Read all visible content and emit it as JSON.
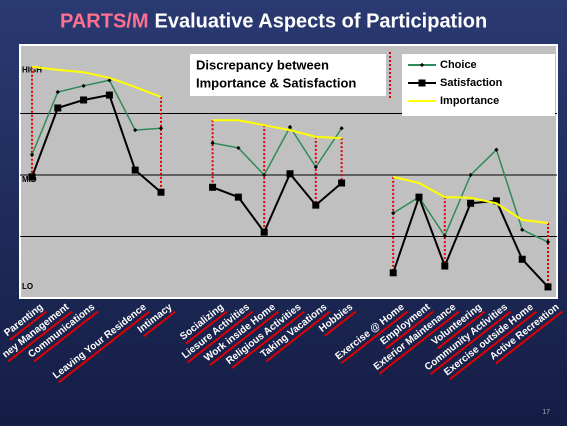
{
  "chart_data": {
    "type": "line",
    "title_highlight": "PARTS/M",
    "title": "Evaluative Aspects of Participation",
    "annotation": [
      "Discrepancy between",
      "Importance & Satisfaction"
    ],
    "page_number": "17",
    "categories": [
      "Parenting",
      "ney Management",
      "Communications",
      null,
      "Leaving Your Residence",
      "Intimacy",
      null,
      "Socializing",
      "Liesure Activities",
      "Work inside Home",
      "Religious Activities",
      "Taking Vacations",
      "Hobbies",
      null,
      "Exercise @ Home",
      "Employment",
      "Exterior Maintenance",
      "Volunteering",
      "Community Activities",
      "Exercise outside Home",
      "Active Recreation"
    ],
    "series": [
      {
        "name": "Choice",
        "color": "#2e8b57",
        "values": [
          2.33,
          3.35,
          3.45,
          3.54,
          2.73,
          2.76,
          null,
          2.52,
          2.44,
          2.0,
          2.78,
          2.13,
          2.76,
          null,
          1.38,
          1.64,
          1.01,
          2.0,
          2.41,
          1.11,
          0.91
        ]
      },
      {
        "name": "Satisfaction",
        "color": "#000000",
        "values": [
          1.97,
          3.09,
          3.22,
          3.3,
          2.08,
          1.72,
          null,
          1.8,
          1.64,
          1.07,
          2.02,
          1.51,
          1.87,
          null,
          0.41,
          1.64,
          0.52,
          1.54,
          1.58,
          0.63,
          0.18
        ]
      },
      {
        "name": "Importance",
        "color": "#ffff00",
        "values": [
          3.76,
          3.71,
          3.67,
          3.58,
          3.43,
          3.27,
          null,
          2.89,
          2.89,
          2.81,
          2.73,
          2.62,
          2.6,
          null,
          1.97,
          1.87,
          1.64,
          1.63,
          1.54,
          1.27,
          1.22
        ]
      }
    ],
    "ylim": [
      0,
      4
    ],
    "yticks": [
      {
        "value": 3.7,
        "label": "HIGH"
      },
      {
        "value": 1.92,
        "label": "MID"
      },
      {
        "value": 0.18,
        "label": "LO"
      }
    ],
    "grid_lines": [
      1,
      2,
      3
    ],
    "grid": true
  }
}
